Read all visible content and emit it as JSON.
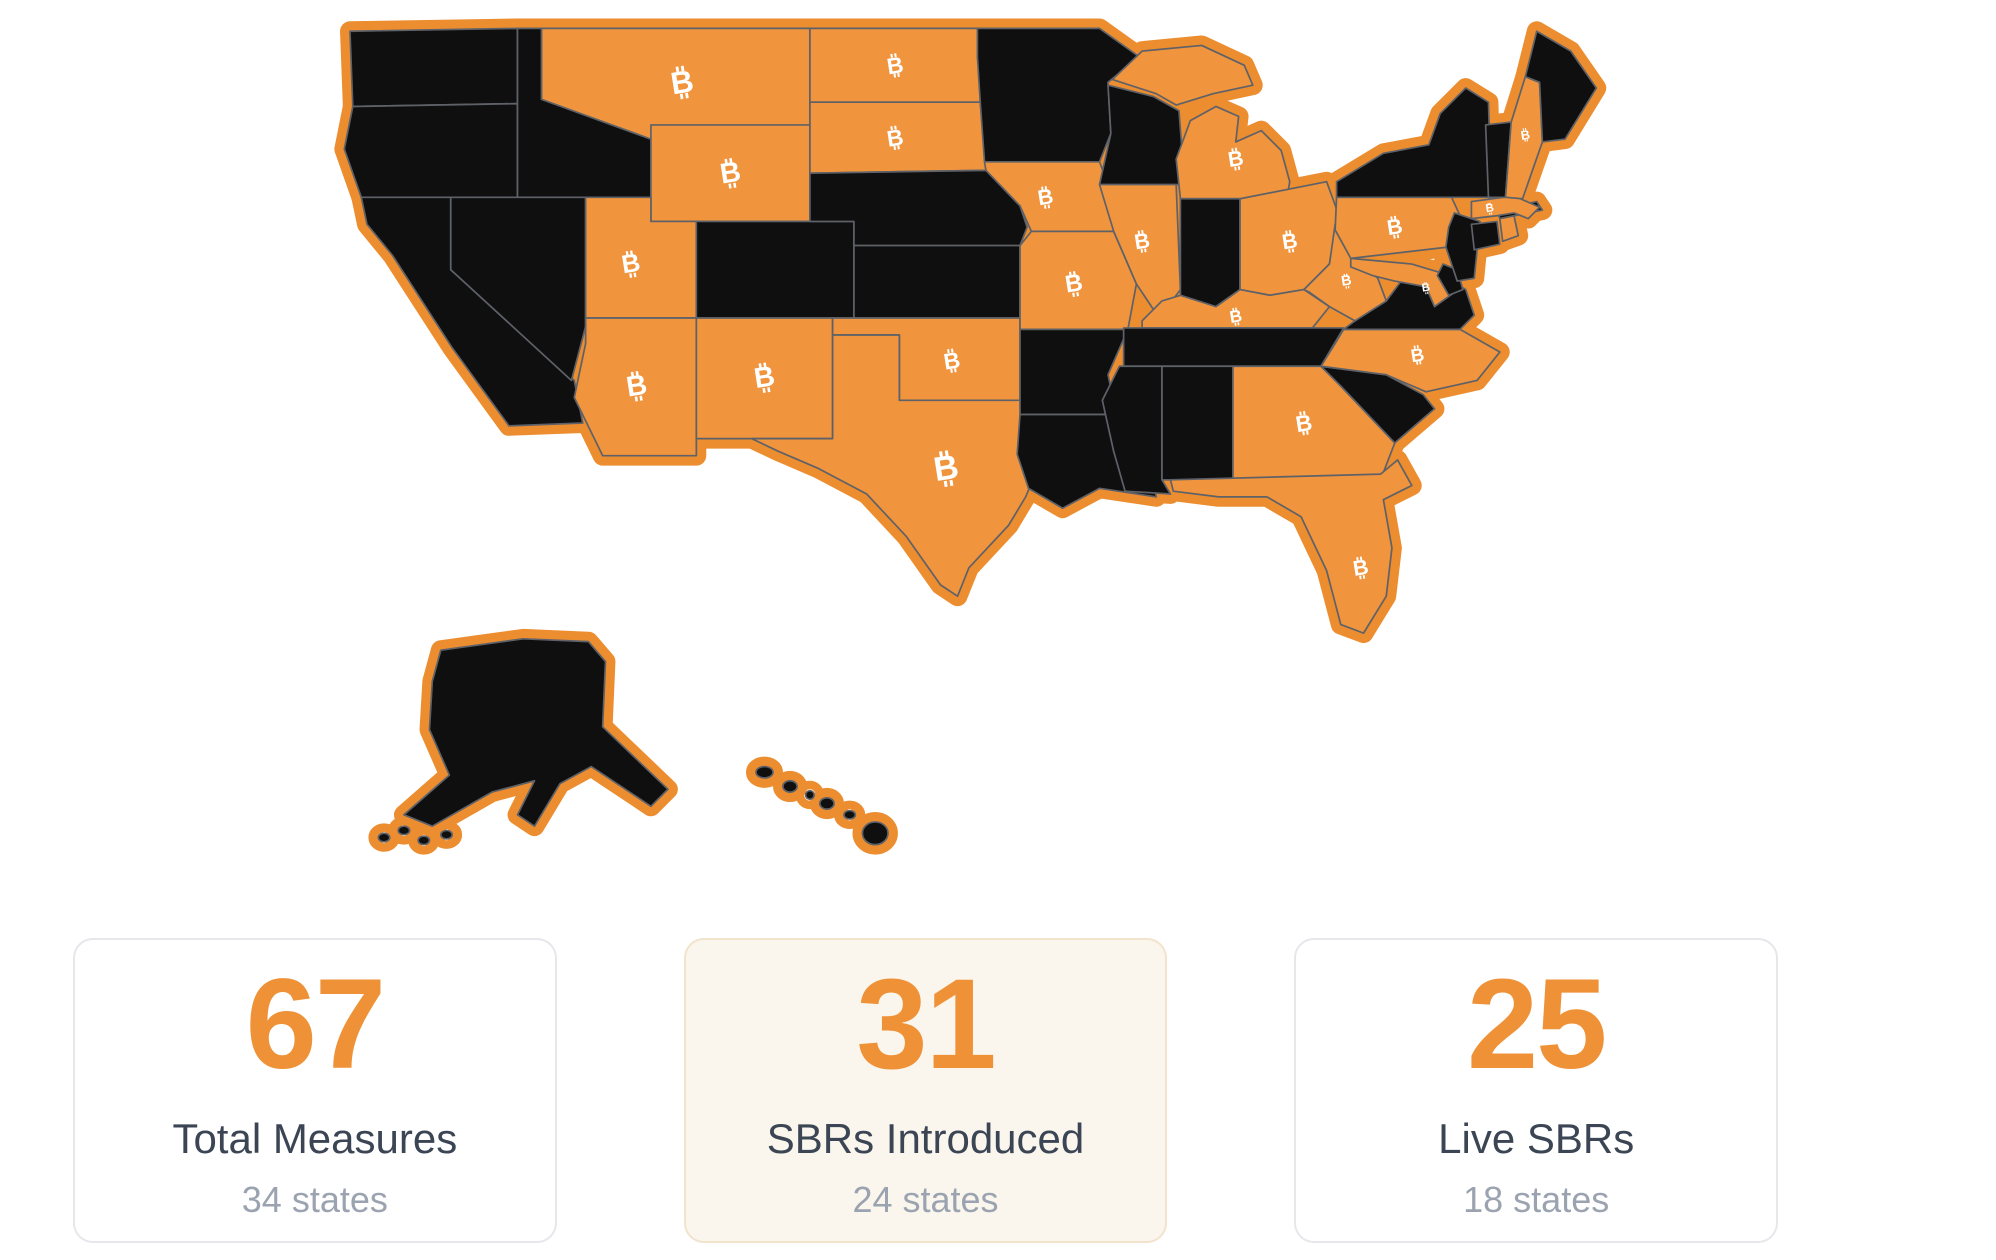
{
  "map": {
    "description": "US state bitcoin reserve status map",
    "bitcoin_symbol": "₿",
    "bitcoin_letter": "B",
    "colors": {
      "active_fill": "#F0943D",
      "inactive_fill": "#0F0F0F",
      "halo": "#EC8D30",
      "border": "#5E6268",
      "symbol": "#FFFFFF",
      "water": "#FFFFFF"
    },
    "states": [
      {
        "id": "WA",
        "name": "Washington",
        "active": false,
        "symbol": false
      },
      {
        "id": "OR",
        "name": "Oregon",
        "active": false,
        "symbol": false
      },
      {
        "id": "CA",
        "name": "California",
        "active": false,
        "symbol": false
      },
      {
        "id": "NV",
        "name": "Nevada",
        "active": false,
        "symbol": false
      },
      {
        "id": "ID",
        "name": "Idaho",
        "active": false,
        "symbol": false
      },
      {
        "id": "MT",
        "name": "Montana",
        "active": true,
        "symbol": true
      },
      {
        "id": "WY",
        "name": "Wyoming",
        "active": true,
        "symbol": true
      },
      {
        "id": "UT",
        "name": "Utah",
        "active": true,
        "symbol": true
      },
      {
        "id": "AZ",
        "name": "Arizona",
        "active": true,
        "symbol": true
      },
      {
        "id": "NM",
        "name": "New Mexico",
        "active": true,
        "symbol": true
      },
      {
        "id": "CO",
        "name": "Colorado",
        "active": false,
        "symbol": false
      },
      {
        "id": "ND",
        "name": "North Dakota",
        "active": true,
        "symbol": true
      },
      {
        "id": "SD",
        "name": "South Dakota",
        "active": true,
        "symbol": true
      },
      {
        "id": "NE",
        "name": "Nebraska",
        "active": false,
        "symbol": false
      },
      {
        "id": "KS",
        "name": "Kansas",
        "active": false,
        "symbol": false
      },
      {
        "id": "OK",
        "name": "Oklahoma",
        "active": true,
        "symbol": true
      },
      {
        "id": "TX",
        "name": "Texas",
        "active": true,
        "symbol": true
      },
      {
        "id": "MN",
        "name": "Minnesota",
        "active": false,
        "symbol": false
      },
      {
        "id": "IA",
        "name": "Iowa",
        "active": true,
        "symbol": true
      },
      {
        "id": "MO",
        "name": "Missouri",
        "active": true,
        "symbol": true
      },
      {
        "id": "AR",
        "name": "Arkansas",
        "active": false,
        "symbol": false
      },
      {
        "id": "LA",
        "name": "Louisiana",
        "active": false,
        "symbol": false
      },
      {
        "id": "WI",
        "name": "Wisconsin",
        "active": false,
        "symbol": false
      },
      {
        "id": "IL",
        "name": "Illinois",
        "active": true,
        "symbol": true
      },
      {
        "id": "MI",
        "name": "Michigan",
        "active": true,
        "symbol": true
      },
      {
        "id": "IN",
        "name": "Indiana",
        "active": false,
        "symbol": false
      },
      {
        "id": "OH",
        "name": "Ohio",
        "active": true,
        "symbol": true
      },
      {
        "id": "KY",
        "name": "Kentucky",
        "active": true,
        "symbol": true
      },
      {
        "id": "TN",
        "name": "Tennessee",
        "active": false,
        "symbol": false
      },
      {
        "id": "MS",
        "name": "Mississippi",
        "active": false,
        "symbol": false
      },
      {
        "id": "AL",
        "name": "Alabama",
        "active": false,
        "symbol": false
      },
      {
        "id": "GA",
        "name": "Georgia",
        "active": true,
        "symbol": true
      },
      {
        "id": "FL",
        "name": "Florida",
        "active": true,
        "symbol": true
      },
      {
        "id": "SC",
        "name": "South Carolina",
        "active": false,
        "symbol": false
      },
      {
        "id": "NC",
        "name": "North Carolina",
        "active": true,
        "symbol": true
      },
      {
        "id": "VA",
        "name": "Virginia",
        "active": false,
        "symbol": false
      },
      {
        "id": "WV",
        "name": "West Virginia",
        "active": true,
        "symbol": true
      },
      {
        "id": "MD",
        "name": "Maryland",
        "active": true,
        "symbol": true
      },
      {
        "id": "DE",
        "name": "Delaware",
        "active": false,
        "symbol": false
      },
      {
        "id": "PA",
        "name": "Pennsylvania",
        "active": true,
        "symbol": true
      },
      {
        "id": "NJ",
        "name": "New Jersey",
        "active": false,
        "symbol": false
      },
      {
        "id": "NY",
        "name": "New York",
        "active": false,
        "symbol": false
      },
      {
        "id": "CT",
        "name": "Connecticut",
        "active": false,
        "symbol": false
      },
      {
        "id": "RI",
        "name": "Rhode Island",
        "active": true,
        "symbol": false
      },
      {
        "id": "MA",
        "name": "Massachusetts",
        "active": true,
        "symbol": true
      },
      {
        "id": "VT",
        "name": "Vermont",
        "active": false,
        "symbol": false
      },
      {
        "id": "NH",
        "name": "New Hampshire",
        "active": true,
        "symbol": true
      },
      {
        "id": "ME",
        "name": "Maine",
        "active": false,
        "symbol": false
      },
      {
        "id": "AK",
        "name": "Alaska",
        "active": false,
        "symbol": false
      },
      {
        "id": "HI",
        "name": "Hawaii",
        "active": false,
        "symbol": false
      }
    ]
  },
  "cards": [
    {
      "value": "67",
      "label": "Total Measures",
      "sublabel": "34 states",
      "highlighted": false
    },
    {
      "value": "31",
      "label": "SBRs Introduced",
      "sublabel": "24 states",
      "highlighted": true
    },
    {
      "value": "25",
      "label": "Live SBRs",
      "sublabel": "18 states",
      "highlighted": false
    }
  ],
  "card_style": {
    "accent": "#EF9237",
    "label_color": "#3B4554",
    "sublabel_color": "#9AA3AF",
    "default_bg": "#FFFFFF",
    "default_border": "#E5E7EB",
    "highlight_bg": "#FAF6ED",
    "highlight_border": "#F2E3CD"
  }
}
